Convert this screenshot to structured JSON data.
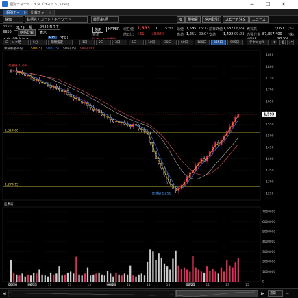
{
  "window": {
    "title": "個別チャート - メタプラネット(3350)",
    "minimize": "─",
    "maximize": "☐",
    "close": "✕"
  },
  "tabs": [
    "個別チャート",
    "比較チャート"
  ],
  "toolbar_top": {
    "market_select": "株価",
    "search_placeholder": "銘柄名・コード・キーワード",
    "favorites": "履歴/銘柄",
    "right_buttons": [
      "現物買",
      "信用取引",
      "スピード注文",
      "ニュース"
    ]
  },
  "row2": {
    "code_box": "3350",
    "index_box": "8179 上場",
    "ticker_box": "9432 N T T",
    "button": "銘柄登録",
    "tag_a": "表示",
    "pts_label": "PTS",
    "pts_label2": "PTS"
  },
  "stock": {
    "code": "3350",
    "name": "メタプラネット",
    "badge_credit": "信用",
    "badge_hyper": "HYPER",
    "margin_note": "貸借",
    "price_label": "現在値",
    "price": "1,593",
    "price_suffix": "C",
    "time": "15:30",
    "prev_change_label": "前日比",
    "change": "+61",
    "change_pct": "+3.98%",
    "warning": "信用・日委規制",
    "open_label": "始値",
    "open": "1,595",
    "open_time": "15:12",
    "high_label": "高値",
    "high": "1,251",
    "high_time": "09:04",
    "low_label": "安値",
    "low": "1,492",
    "low_time": "09:03",
    "volume_label": "前日終値",
    "volume": "1,532",
    "volume_date": "06/24",
    "turnover_label": "売買高",
    "turnover": "7,050",
    "turnover_unit": "(%)",
    "amount_label": "売買代金",
    "amount": "87,857,400",
    "amount_unit": "(株)",
    "vwap_label": "VWAP",
    "vwap": "93.5%"
  },
  "chart_toolbar": {
    "chart_type": "ローソク足",
    "interval": "5分",
    "source": "期間指定",
    "periods": [
      "1日",
      "2日",
      "3日",
      "5日",
      "10日",
      "30日",
      "60日",
      "180日",
      "365日",
      "999日"
    ],
    "selected_period": "365日",
    "right": "テクニカル"
  },
  "legend": {
    "label": "単純移動平均",
    "items": [
      {
        "name": "SMA(5)",
        "color": "#ffb300"
      },
      {
        "name": "SMA(25)",
        "color": "#3b82f6"
      },
      {
        "name": "SMA(75)",
        "color": "#b0b0b0"
      },
      {
        "name": "SMA(100)",
        "color": "#e0505a"
      }
    ]
  },
  "volume_panel_label": "出来高",
  "annotations": {
    "high_label": "高値値 1,798",
    "low_label": "安値値 1,251",
    "line_a": "1,514.88",
    "line_b": "1,279.15",
    "current_price_tag": "1,593"
  },
  "scroll_right_label": "通常",
  "colors": {
    "up": "#e0305a",
    "down": "#f0f0f0",
    "price_red": "#ff4040",
    "accent": "#1f4f8f",
    "yellow_line": "#e6d84a"
  },
  "chart_data": {
    "type": "candlestick",
    "y_axis_ticks": [
      1850,
      1800,
      1750,
      1700,
      1650,
      1600,
      1550,
      1500,
      1450,
      1400,
      1350,
      1300,
      1250
    ],
    "y_range": [
      1220,
      1870
    ],
    "volume_ticks": [
      7000000,
      6000000,
      5000000,
      4000000,
      3000000,
      2000000,
      1000000,
      0
    ],
    "x_labels": [
      "06/20",
      "06/23",
      "11",
      "13",
      "15",
      "06/24",
      "11",
      "13",
      "15",
      "06/25",
      "11",
      "13",
      "15"
    ],
    "closes": [
      1780,
      1785,
      1775,
      1778,
      1770,
      1760,
      1765,
      1755,
      1740,
      1745,
      1735,
      1730,
      1725,
      1720,
      1710,
      1715,
      1705,
      1700,
      1690,
      1695,
      1680,
      1670,
      1660,
      1665,
      1650,
      1640,
      1645,
      1630,
      1620,
      1610,
      1615,
      1600,
      1590,
      1585,
      1580,
      1570,
      1560,
      1565,
      1555,
      1560,
      1550,
      1545,
      1540,
      1550,
      1545,
      1530,
      1525,
      1520,
      1510,
      1470,
      1430,
      1400,
      1380,
      1360,
      1330,
      1300,
      1290,
      1270,
      1260,
      1270,
      1285,
      1300,
      1320,
      1340,
      1350,
      1370,
      1380,
      1400,
      1390,
      1410,
      1430,
      1450,
      1470,
      1460,
      1480,
      1500,
      1520,
      1540,
      1560,
      1580,
      1593
    ],
    "volumes": [
      2.2,
      0.9,
      0.7,
      0.6,
      0.8,
      0.5,
      0.7,
      0.6,
      0.9,
      0.8,
      1.2,
      0.7,
      0.6,
      0.5,
      0.9,
      0.7,
      0.8,
      1.5,
      0.6,
      0.7,
      0.9,
      1.0,
      0.8,
      2.5,
      0.7,
      0.6,
      0.8,
      1.4,
      0.6,
      0.7,
      0.8,
      0.9,
      0.7,
      0.6,
      1.1,
      0.8,
      0.5,
      0.9,
      0.7,
      0.6,
      0.8,
      0.7,
      1.6,
      0.6,
      0.5,
      0.7,
      0.8,
      0.6,
      2.0,
      3.2,
      3.0,
      2.2,
      2.8,
      2.4,
      1.8,
      1.5,
      1.2,
      2.3,
      3.1,
      1.6,
      1.3,
      1.4,
      1.2,
      1.0,
      2.6,
      1.4,
      1.2,
      1.0,
      0.9,
      1.5,
      1.1,
      1.3,
      1.0,
      0.8,
      1.4,
      1.0,
      2.2,
      1.6,
      1.4,
      1.9,
      2.4
    ]
  }
}
